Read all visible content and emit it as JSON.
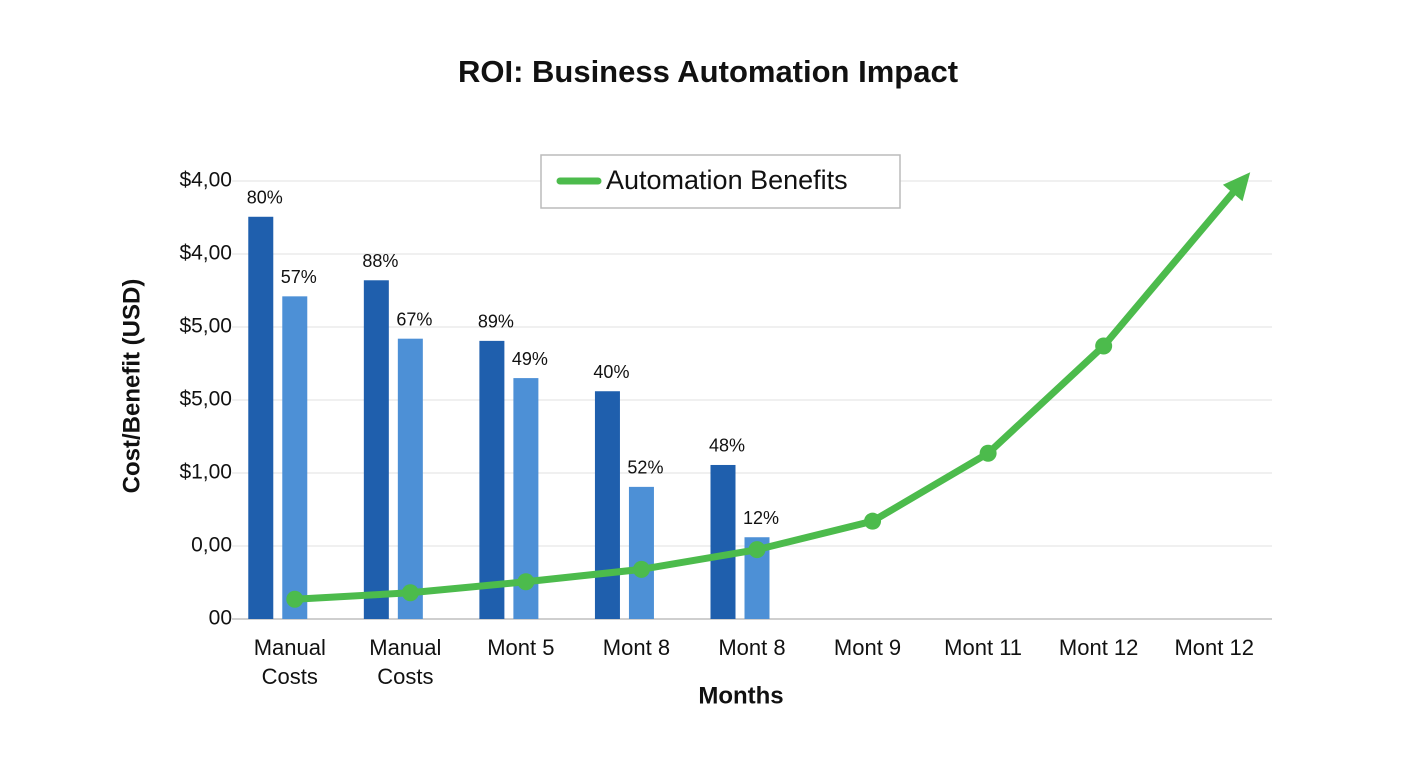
{
  "chart_data": {
    "type": "bar",
    "title": "ROI: Business Automation Impact",
    "x_label": "Months",
    "y_label": "Cost/Benefit (USD)",
    "categories": [
      "Manual Costs",
      "Manual Costs",
      "Mont 5",
      "Mont 8",
      "Mont 8",
      "Mont 9",
      "Mont 11",
      "Mont 12",
      "Mont 12"
    ],
    "ylim": [
      0,
      6.2
    ],
    "yticks": [
      {
        "value": 0,
        "label": "00"
      },
      {
        "value": 1,
        "label": "0,00"
      },
      {
        "value": 2,
        "label": "$1,00"
      },
      {
        "value": 3,
        "label": "$5,00"
      },
      {
        "value": 4,
        "label": "$5,00"
      },
      {
        "value": 5,
        "label": "$4,00"
      },
      {
        "value": 6,
        "label": "$4,00"
      }
    ],
    "grid": true,
    "legend": "top",
    "series": [
      {
        "type": "bar",
        "color": "#1f5fad",
        "values": [
          5.51,
          4.64,
          3.81,
          3.12,
          2.11,
          null,
          null,
          null,
          null
        ],
        "annotations": [
          "80%",
          "88%",
          "89%",
          "40%",
          "48%",
          null,
          null,
          null,
          null
        ]
      },
      {
        "type": "bar",
        "color": "#4d90d6",
        "values": [
          4.42,
          3.84,
          3.3,
          1.81,
          1.12,
          null,
          null,
          null,
          null
        ],
        "annotations": [
          "57%",
          "67%",
          "49%",
          "52%",
          "12%",
          null,
          null,
          null,
          null
        ]
      },
      {
        "type": "line",
        "name": "Automation Benefits",
        "color": "#4cbb4c",
        "values": [
          0.27,
          0.36,
          0.51,
          0.68,
          0.95,
          1.34,
          2.27,
          3.74,
          6.12
        ]
      }
    ]
  }
}
